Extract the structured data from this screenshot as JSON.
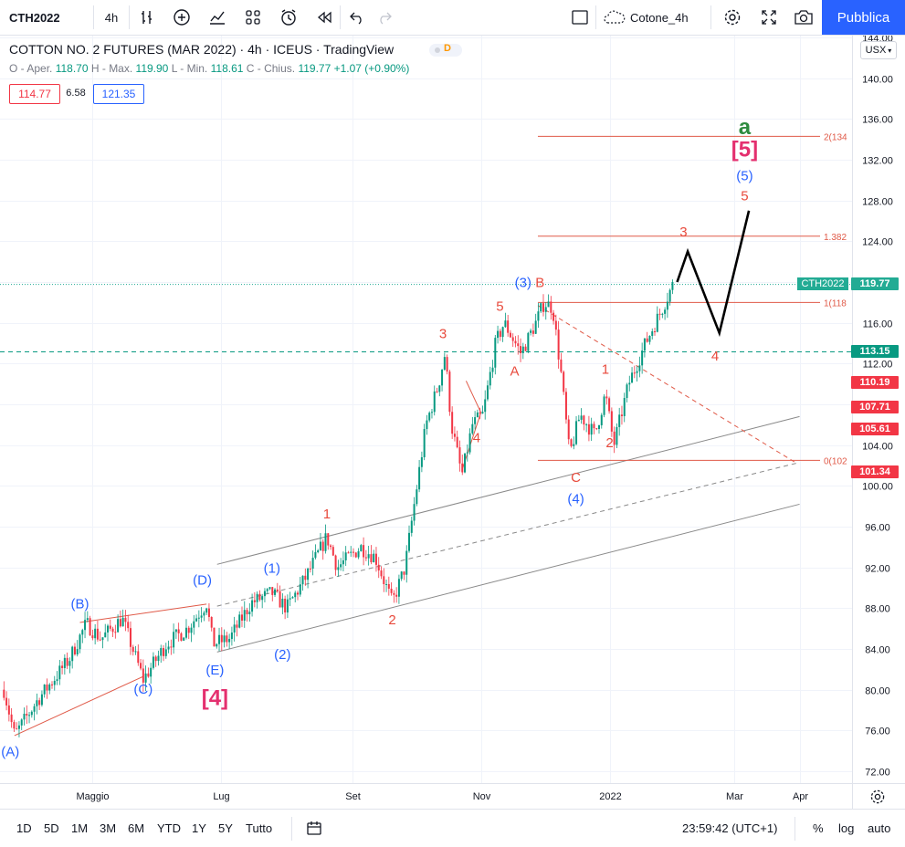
{
  "toolbar": {
    "symbol": "CTH2022",
    "interval": "4h",
    "layout_name": "Cotone_4h",
    "publish_label": "Pubblica"
  },
  "legend": {
    "title": "COTTON NO. 2 FUTURES (MAR 2022) · 4h · ICEUS · TradingView",
    "data_badge": "D",
    "ohlc": {
      "open_label": "O - Aper.",
      "open": "118.70",
      "high_label": "H - Max.",
      "high": "119.90",
      "low_label": "L - Min.",
      "low": "118.61",
      "close_label": "C - Chius.",
      "close": "119.77",
      "change": "+1.07 (+0.90%)"
    },
    "bid": "114.77",
    "spread": "6.58",
    "ask": "121.35"
  },
  "bottom_bar": {
    "ranges": [
      "1D",
      "5D",
      "1M",
      "3M",
      "6M",
      "YTD",
      "1Y",
      "5Y",
      "Tutto"
    ],
    "clock": "23:59:42 (UTC+1)",
    "percent_label": "%",
    "log_label": "log",
    "auto_label": "auto"
  },
  "colors": {
    "up": "#089981",
    "down": "#f23645",
    "wave_red": "#e84a3c",
    "wave_blue": "#2962ff",
    "wave_green": "#2e8b3e",
    "wave_pink": "#e4306f",
    "fib": "#e05a48",
    "channel": "#8a8a8a",
    "last_price": "#22ab94",
    "level_green": "#089981",
    "level_red": "#f23645"
  },
  "chart_data": {
    "type": "candlestick",
    "currency": "USX",
    "yticks": [
      72,
      76,
      80,
      84,
      88,
      92,
      96,
      100,
      104,
      108,
      112,
      116,
      120,
      124,
      128,
      132,
      136,
      140,
      144
    ],
    "ylim": [
      70.6,
      145.0
    ],
    "xticks": [
      {
        "label": "Maggio",
        "date": "2021-05-01"
      },
      {
        "label": "Lug",
        "date": "2021-07-01"
      },
      {
        "label": "Set",
        "date": "2021-09-01"
      },
      {
        "label": "Nov",
        "date": "2021-11-01"
      },
      {
        "label": "2022",
        "date": "2022-01-01"
      },
      {
        "label": "Mar",
        "date": "2022-03-01"
      },
      {
        "label": "Apr",
        "date": "2022-04-01"
      }
    ],
    "price_path": [
      [
        "2021-03-20",
        80
      ],
      [
        "2021-03-25",
        75.5
      ],
      [
        "2021-04-05",
        79
      ],
      [
        "2021-04-20",
        83
      ],
      [
        "2021-04-28",
        86.5
      ],
      [
        "2021-05-05",
        85
      ],
      [
        "2021-05-15",
        87
      ],
      [
        "2021-05-25",
        81
      ],
      [
        "2021-06-05",
        84.5
      ],
      [
        "2021-06-15",
        86
      ],
      [
        "2021-06-24",
        88.5
      ],
      [
        "2021-06-27",
        84.5
      ],
      [
        "2021-07-05",
        85
      ],
      [
        "2021-07-15",
        88.5
      ],
      [
        "2021-07-25",
        89.5
      ],
      [
        "2021-08-01",
        88
      ],
      [
        "2021-08-10",
        91
      ],
      [
        "2021-08-20",
        95
      ],
      [
        "2021-08-25",
        92
      ],
      [
        "2021-09-05",
        94
      ],
      [
        "2021-09-12",
        93
      ],
      [
        "2021-09-20",
        88.5
      ],
      [
        "2021-09-26",
        92
      ],
      [
        "2021-10-01",
        99
      ],
      [
        "2021-10-06",
        106
      ],
      [
        "2021-10-12",
        110
      ],
      [
        "2021-10-15",
        113
      ],
      [
        "2021-10-18",
        106
      ],
      [
        "2021-10-23",
        101
      ],
      [
        "2021-10-28",
        106
      ],
      [
        "2021-11-02",
        107
      ],
      [
        "2021-11-08",
        114
      ],
      [
        "2021-11-12",
        116
      ],
      [
        "2021-11-20",
        113
      ],
      [
        "2021-11-27",
        116
      ],
      [
        "2021-12-01",
        118
      ],
      [
        "2021-12-05",
        117.5
      ],
      [
        "2021-12-09",
        111
      ],
      [
        "2021-12-13",
        103
      ],
      [
        "2021-12-18",
        107
      ],
      [
        "2021-12-25",
        105
      ],
      [
        "2021-12-30",
        109
      ],
      [
        "2022-01-03",
        104
      ],
      [
        "2022-01-10",
        110
      ],
      [
        "2022-01-18",
        114
      ],
      [
        "2022-01-25",
        117
      ],
      [
        "2022-01-31",
        119.77
      ]
    ],
    "projection": [
      [
        "2022-02-02",
        120
      ],
      [
        "2022-02-07",
        123
      ],
      [
        "2022-02-22",
        115
      ],
      [
        "2022-03-08",
        127
      ]
    ],
    "fib_levels": [
      {
        "label": "2(134",
        "price": 134.3
      },
      {
        "label": "1.382",
        "price": 124.5
      },
      {
        "label": "1(118",
        "price": 118.0
      },
      {
        "label": "0(102",
        "price": 102.5
      }
    ],
    "price_labels": [
      {
        "value": "119.77",
        "price": 119.8,
        "color": "#22ab94",
        "tag": "CTH2022"
      },
      {
        "value": "113.15",
        "price": 113.15,
        "color": "#089981"
      },
      {
        "value": "110.19",
        "price": 110.19,
        "color": "#f23645"
      },
      {
        "value": "107.71",
        "price": 107.71,
        "color": "#f23645"
      },
      {
        "value": "105.61",
        "price": 105.61,
        "color": "#f23645"
      },
      {
        "value": "101.34",
        "price": 101.34,
        "color": "#f23645"
      }
    ],
    "wave_labels": [
      {
        "text": "(A)",
        "date": "2021-03-23",
        "price": 73.5,
        "color": "blue"
      },
      {
        "text": "(B)",
        "date": "2021-04-25",
        "price": 88.0,
        "color": "blue"
      },
      {
        "text": "(C)",
        "date": "2021-05-25",
        "price": 79.6,
        "color": "blue"
      },
      {
        "text": "(D)",
        "date": "2021-06-22",
        "price": 90.3,
        "color": "blue"
      },
      {
        "text": "(E)",
        "date": "2021-06-28",
        "price": 81.5,
        "color": "blue"
      },
      {
        "text": "[4]",
        "date": "2021-06-28",
        "price": 78.5,
        "color": "pink"
      },
      {
        "text": "(1)",
        "date": "2021-07-25",
        "price": 91.5,
        "color": "blue"
      },
      {
        "text": "(2)",
        "date": "2021-07-30",
        "price": 83.0,
        "color": "blue"
      },
      {
        "text": "1",
        "date": "2021-08-20",
        "price": 96.8,
        "color": "red"
      },
      {
        "text": "2",
        "date": "2021-09-20",
        "price": 86.4,
        "color": "red"
      },
      {
        "text": "3",
        "date": "2021-10-14",
        "price": 114.5,
        "color": "red"
      },
      {
        "text": "4",
        "date": "2021-10-30",
        "price": 104.3,
        "color": "red"
      },
      {
        "text": "5",
        "date": "2021-11-10",
        "price": 117.2,
        "color": "red"
      },
      {
        "text": "(3)",
        "date": "2021-11-21",
        "price": 119.5,
        "color": "blue"
      },
      {
        "text": "B",
        "date": "2021-11-29",
        "price": 119.5,
        "color": "red"
      },
      {
        "text": "A",
        "date": "2021-11-17",
        "price": 110.8,
        "color": "red"
      },
      {
        "text": "C",
        "date": "2021-12-16",
        "price": 100.4,
        "color": "red"
      },
      {
        "text": "(4)",
        "date": "2021-12-16",
        "price": 98.3,
        "color": "blue"
      },
      {
        "text": "1",
        "date": "2021-12-30",
        "price": 111.0,
        "color": "red"
      },
      {
        "text": "2",
        "date": "2022-01-01",
        "price": 103.8,
        "color": "red"
      },
      {
        "text": "3",
        "date": "2022-02-05",
        "price": 124.5,
        "color": "red"
      },
      {
        "text": "4",
        "date": "2022-02-20",
        "price": 112.3,
        "color": "red"
      },
      {
        "text": "5",
        "date": "2022-03-06",
        "price": 128.0,
        "color": "red"
      },
      {
        "text": "(5)",
        "date": "2022-03-06",
        "price": 130.0,
        "color": "blue"
      },
      {
        "text": "[5]",
        "date": "2022-03-06",
        "price": 132.3,
        "color": "pink"
      },
      {
        "text": "a",
        "date": "2022-03-06",
        "price": 134.5,
        "color": "green"
      }
    ],
    "channel": {
      "upper": [
        [
          "2021-06-29",
          92.3
        ],
        [
          "2022-04-01",
          106.8
        ]
      ],
      "middle": [
        [
          "2021-06-29",
          88.2
        ],
        [
          "2022-04-01",
          102.3
        ]
      ],
      "lower": [
        [
          "2021-06-29",
          83.7
        ],
        [
          "2022-04-01",
          98.2
        ]
      ]
    },
    "triangles": [
      [
        [
          "2021-03-25",
          75.5
        ],
        [
          "2021-05-25",
          81.3
        ]
      ],
      [
        [
          "2021-04-25",
          86.6
        ],
        [
          "2021-06-24",
          88.4
        ]
      ]
    ],
    "level_113": 113.15,
    "wedge_line": [
      [
        "2021-11-28",
        117.7
      ],
      [
        "2022-03-30",
        102.3
      ]
    ]
  }
}
